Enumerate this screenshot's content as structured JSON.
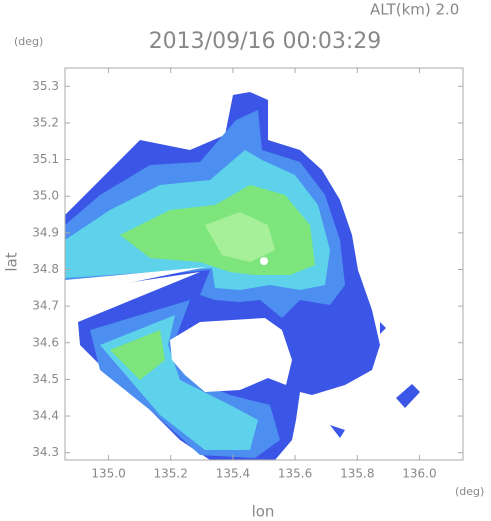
{
  "chart_data": {
    "type": "radar",
    "title": "2013/09/16 00:03:29",
    "annotation": "ALT(km) 2.0",
    "xlabel": "lon",
    "ylabel": "lat",
    "xunit": "(deg)",
    "yunit": "(deg)",
    "xlim": [
      134.86,
      136.14
    ],
    "ylim": [
      34.28,
      35.35
    ],
    "xticks": [
      {
        "value": 135,
        "label": "135.0"
      },
      135.2,
      135.4,
      135.6,
      135.8,
      {
        "value": 136,
        "label": "136.0"
      }
    ],
    "yticks": [
      34.3,
      34.4,
      34.5,
      34.6,
      34.7,
      34.8,
      34.9,
      {
        "value": 35,
        "label": "35.0"
      },
      35.1,
      35.2,
      35.3
    ]
  }
}
